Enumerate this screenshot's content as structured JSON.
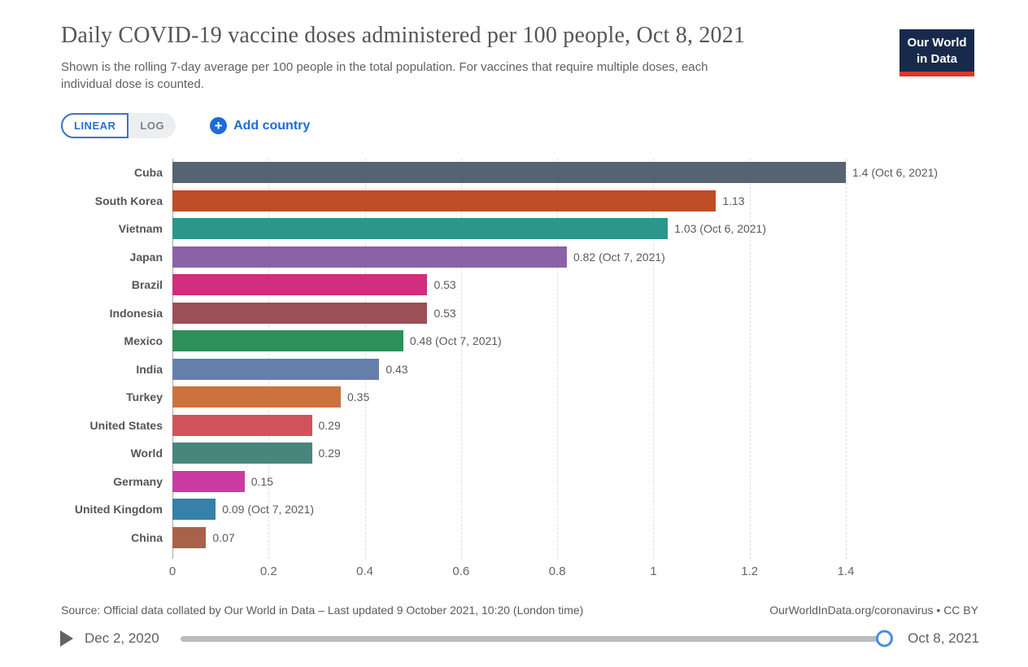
{
  "header": {
    "title": "Daily COVID-19 vaccine doses administered per 100 people, Oct 8, 2021",
    "subtitle_line1": "Shown is the rolling 7-day average per 100 people in the total population. For vaccines that require multiple doses, each",
    "subtitle_line2": "individual dose is counted.",
    "logo": {
      "line1": "Our World",
      "line2": "in Data",
      "bg_color": "#182a4c",
      "stripe_color": "#e0332b"
    }
  },
  "controls": {
    "linear_label": "LINEAR",
    "log_label": "LOG",
    "add_country_label": "Add country",
    "accent_blue": "#1d6cd8"
  },
  "chart_data": {
    "type": "bar",
    "orientation": "horizontal",
    "title": "Daily COVID-19 vaccine doses administered per 100 people, Oct 8, 2021",
    "xlabel": "",
    "ylabel": "",
    "xlim": [
      0,
      1.4
    ],
    "xticks": [
      0,
      0.2,
      0.4,
      0.6,
      0.8,
      1,
      1.2,
      1.4
    ],
    "xtick_labels": [
      "0",
      "0.2",
      "0.4",
      "0.6",
      "0.8",
      "1",
      "1.2",
      "1.4"
    ],
    "grid": "dashed-vertical",
    "series": [
      {
        "label": "Cuba",
        "value": 1.4,
        "value_label": "1.4 (Oct 6, 2021)",
        "color": "#566373"
      },
      {
        "label": "South Korea",
        "value": 1.13,
        "value_label": "1.13",
        "color": "#bf4d26"
      },
      {
        "label": "Vietnam",
        "value": 1.03,
        "value_label": "1.03 (Oct 6, 2021)",
        "color": "#2a968c"
      },
      {
        "label": "Japan",
        "value": 0.82,
        "value_label": "0.82 (Oct 7, 2021)",
        "color": "#8b62a8"
      },
      {
        "label": "Brazil",
        "value": 0.53,
        "value_label": "0.53",
        "color": "#d12d7c"
      },
      {
        "label": "Indonesia",
        "value": 0.53,
        "value_label": "0.53",
        "color": "#9b4f56"
      },
      {
        "label": "Mexico",
        "value": 0.48,
        "value_label": "0.48 (Oct 7, 2021)",
        "color": "#2c9159"
      },
      {
        "label": "India",
        "value": 0.43,
        "value_label": "0.43",
        "color": "#6480aa"
      },
      {
        "label": "Turkey",
        "value": 0.35,
        "value_label": "0.35",
        "color": "#cd723e"
      },
      {
        "label": "United States",
        "value": 0.29,
        "value_label": "0.29",
        "color": "#d2525c"
      },
      {
        "label": "World",
        "value": 0.29,
        "value_label": "0.29",
        "color": "#48867d"
      },
      {
        "label": "Germany",
        "value": 0.15,
        "value_label": "0.15",
        "color": "#ca3ba2"
      },
      {
        "label": "United Kingdom",
        "value": 0.09,
        "value_label": "0.09 (Oct 7, 2021)",
        "color": "#3581a9"
      },
      {
        "label": "China",
        "value": 0.07,
        "value_label": "0.07",
        "color": "#a8624a"
      }
    ]
  },
  "footer": {
    "source": "Source: Official data collated by Our World in Data – Last updated 9 October 2021, 10:20 (London time)",
    "attribution": "OurWorldInData.org/coronavirus • CC BY"
  },
  "timeline": {
    "start_date": "Dec 2, 2020",
    "end_date": "Oct 8, 2021"
  }
}
